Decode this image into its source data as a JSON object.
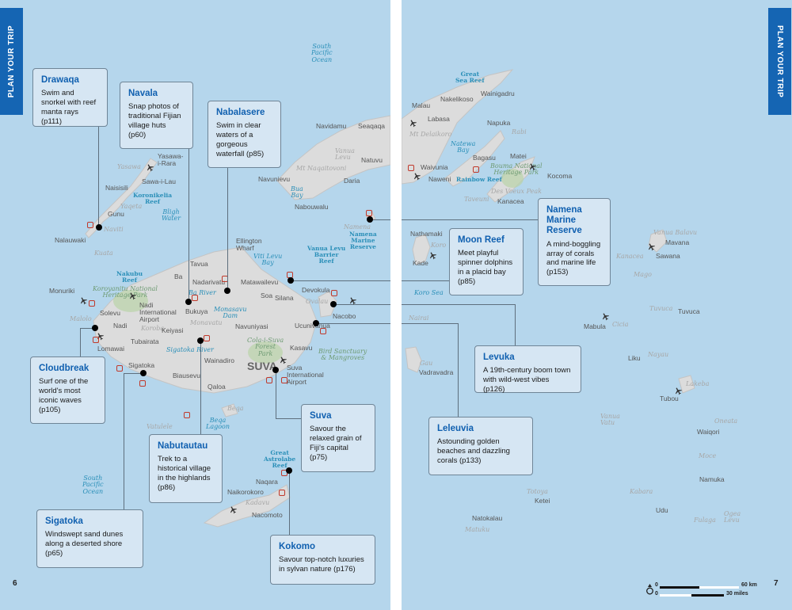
{
  "section_tab": "PLAN YOUR TRIP",
  "page_numbers": {
    "left": "6",
    "right": "7"
  },
  "colors": {
    "sea": "#b5d6ec",
    "land": "#dcdcdc",
    "accent": "#1565b3",
    "callout_bg": "#d6e6f3",
    "poi": "#c0392b"
  },
  "left_page": {
    "places": [
      {
        "text": "South\nPacific\nOcean",
        "type": "water"
      },
      {
        "text": "Yasawa-\ni-Rara",
        "type": "town"
      },
      {
        "text": "Yasawa",
        "type": "island"
      },
      {
        "text": "Sawa-i-Lau",
        "type": "town"
      },
      {
        "text": "Naisisili",
        "type": "town"
      },
      {
        "text": "Koronikelia\nReef",
        "type": "reef"
      },
      {
        "text": "Yaqeta",
        "type": "island"
      },
      {
        "text": "Bligh\nWater",
        "type": "water"
      },
      {
        "text": "Gunu",
        "type": "town"
      },
      {
        "text": "Naviti",
        "type": "island"
      },
      {
        "text": "Nalauwaki",
        "type": "town"
      },
      {
        "text": "Kuata",
        "type": "island"
      },
      {
        "text": "Navidamu",
        "type": "town"
      },
      {
        "text": "Seaqaqa",
        "type": "town"
      },
      {
        "text": "Vanua\nLevu",
        "type": "island"
      },
      {
        "text": "Natuvu",
        "type": "town"
      },
      {
        "text": "Mt Naqaitovoni",
        "type": "island"
      },
      {
        "text": "Navunievu",
        "type": "town"
      },
      {
        "text": "Daria",
        "type": "town"
      },
      {
        "text": "Bua\nBay",
        "type": "water"
      },
      {
        "text": "Nabouwalu",
        "type": "town"
      },
      {
        "text": "Namena",
        "type": "island"
      },
      {
        "text": "Namena\nMarine\nReserve",
        "type": "reef"
      },
      {
        "text": "Ellington\nWharf",
        "type": "town"
      },
      {
        "text": "Viti Levu\nBay",
        "type": "water"
      },
      {
        "text": "Vanua Levu\nBarrier\nReef",
        "type": "reef"
      },
      {
        "text": "Tavua",
        "type": "town"
      },
      {
        "text": "Nakubu\nReef",
        "type": "reef"
      },
      {
        "text": "Ba",
        "type": "town"
      },
      {
        "text": "Nadarivatu",
        "type": "town"
      },
      {
        "text": "Matawailevu",
        "type": "town"
      },
      {
        "text": "Koroyanitu National\nHeritage Park",
        "type": "park"
      },
      {
        "text": "Ba River",
        "type": "water"
      },
      {
        "text": "Soa",
        "type": "town"
      },
      {
        "text": "Silana",
        "type": "town"
      },
      {
        "text": "Devokula",
        "type": "town"
      },
      {
        "text": "Ovalau",
        "type": "island"
      },
      {
        "text": "Monuriki",
        "type": "town"
      },
      {
        "text": "Nadi\nInternational\nAirport",
        "type": "town"
      },
      {
        "text": "Bukuya",
        "type": "town"
      },
      {
        "text": "Monasavu\nDam",
        "type": "water"
      },
      {
        "text": "Solevu",
        "type": "town"
      },
      {
        "text": "Malolo",
        "type": "island"
      },
      {
        "text": "Nacobo",
        "type": "town"
      },
      {
        "text": "Ucunivanua",
        "type": "town"
      },
      {
        "text": "Navuniyasi",
        "type": "town"
      },
      {
        "text": "Nadi",
        "type": "town"
      },
      {
        "text": "Koroba",
        "type": "island"
      },
      {
        "text": "Keiyasi",
        "type": "town"
      },
      {
        "text": "Monavatu",
        "type": "island"
      },
      {
        "text": "Tubairata",
        "type": "town"
      },
      {
        "text": "Sigatoka River",
        "type": "water"
      },
      {
        "text": "Cola-i-Suva\nForest\nPark",
        "type": "park"
      },
      {
        "text": "Kasavu",
        "type": "town"
      },
      {
        "text": "Bird Sanctuary\n& Mangroves",
        "type": "park"
      },
      {
        "text": "Lomawai",
        "type": "town"
      },
      {
        "text": "Wainadiro",
        "type": "town"
      },
      {
        "text": "SUVA",
        "type": "big"
      },
      {
        "text": "Suva\nInternational\nAirport",
        "type": "town"
      },
      {
        "text": "Sigatoka",
        "type": "town"
      },
      {
        "text": "Biausevu",
        "type": "town"
      },
      {
        "text": "Qaloa",
        "type": "town"
      },
      {
        "text": "Beqa",
        "type": "island"
      },
      {
        "text": "Beqa\nLagoon",
        "type": "water"
      },
      {
        "text": "Vatulele",
        "type": "island"
      },
      {
        "text": "South\nPacific\nOcean",
        "type": "water"
      },
      {
        "text": "Great\nAstrolabe\nReef",
        "type": "reef"
      },
      {
        "text": "Naqara",
        "type": "town"
      },
      {
        "text": "Naikorokoro",
        "type": "town"
      },
      {
        "text": "Kadavu",
        "type": "island"
      },
      {
        "text": "Nacomoto",
        "type": "town"
      }
    ],
    "callouts": {
      "drawaqa": {
        "title": "Drawaqa",
        "text": "Swim and snorkel with reef manta rays (p111)"
      },
      "navala": {
        "title": "Navala",
        "text": "Snap photos of traditional Fijian village huts (p60)"
      },
      "nabalasere": {
        "title": "Nabalasere",
        "text": "Swim in clear waters of a gorgeous waterfall (p85)"
      },
      "cloudbreak": {
        "title": "Cloudbreak",
        "text": "Surf one of the world's most iconic waves (p105)"
      },
      "sigatoka": {
        "title": "Sigatoka",
        "text": "Windswept sand dunes along a deserted shore (p65)"
      },
      "nabutautau": {
        "title": "Nabutautau",
        "text": "Trek to a historical village in the highlands (p86)"
      },
      "suva": {
        "title": "Suva",
        "text": "Savour the relaxed grain of Fiji's capital (p75)"
      },
      "kokomo": {
        "title": "Kokomo",
        "text": "Savour top-notch luxuries in sylvan nature (p176)"
      }
    }
  },
  "right_page": {
    "places": [
      {
        "text": "Great\nSea Reef",
        "type": "reef"
      },
      {
        "text": "Malau",
        "type": "town"
      },
      {
        "text": "Nakelikoso",
        "type": "town"
      },
      {
        "text": "Wainigadru",
        "type": "town"
      },
      {
        "text": "Labasa",
        "type": "town"
      },
      {
        "text": "Mt Delaikoro",
        "type": "island"
      },
      {
        "text": "Napuka",
        "type": "town"
      },
      {
        "text": "Rabi",
        "type": "island"
      },
      {
        "text": "Natewa\nBay",
        "type": "water"
      },
      {
        "text": "Bagasu",
        "type": "town"
      },
      {
        "text": "Matei",
        "type": "town"
      },
      {
        "text": "Waivunia",
        "type": "town"
      },
      {
        "text": "Bouma National\nHeritage Park",
        "type": "park"
      },
      {
        "text": "Naweni",
        "type": "town"
      },
      {
        "text": "Rainbow Reef",
        "type": "reef"
      },
      {
        "text": "Kocoma",
        "type": "town"
      },
      {
        "text": "Des Voeux Peak",
        "type": "island"
      },
      {
        "text": "Taveuni",
        "type": "island"
      },
      {
        "text": "Kanacea",
        "type": "town"
      },
      {
        "text": "Nathamaki",
        "type": "town"
      },
      {
        "text": "Koro",
        "type": "island"
      },
      {
        "text": "Kade",
        "type": "town"
      },
      {
        "text": "Vanua Balavu",
        "type": "island"
      },
      {
        "text": "Mavana",
        "type": "town"
      },
      {
        "text": "Sawana",
        "type": "town"
      },
      {
        "text": "Kanacea",
        "type": "island"
      },
      {
        "text": "Mago",
        "type": "island"
      },
      {
        "text": "Koro Sea",
        "type": "water"
      },
      {
        "text": "Nairai",
        "type": "island"
      },
      {
        "text": "Tuvuca",
        "type": "island"
      },
      {
        "text": "Tuvuca",
        "type": "town"
      },
      {
        "text": "Mabula",
        "type": "town"
      },
      {
        "text": "Cicia",
        "type": "island"
      },
      {
        "text": "Gau",
        "type": "island"
      },
      {
        "text": "Vadravadra",
        "type": "town"
      },
      {
        "text": "Liku",
        "type": "town"
      },
      {
        "text": "Nayau",
        "type": "island"
      },
      {
        "text": "Lakeba",
        "type": "island"
      },
      {
        "text": "Tubou",
        "type": "town"
      },
      {
        "text": "Vanua\nVatu",
        "type": "island"
      },
      {
        "text": "Oneata",
        "type": "island"
      },
      {
        "text": "Waiqori",
        "type": "town"
      },
      {
        "text": "Moce",
        "type": "island"
      },
      {
        "text": "Namuka",
        "type": "town"
      },
      {
        "text": "Totoya",
        "type": "island"
      },
      {
        "text": "Ketei",
        "type": "town"
      },
      {
        "text": "Kabara",
        "type": "island"
      },
      {
        "text": "Udu",
        "type": "town"
      },
      {
        "text": "Natokalau",
        "type": "town"
      },
      {
        "text": "Matuku",
        "type": "island"
      },
      {
        "text": "Fulaga",
        "type": "island"
      },
      {
        "text": "Ogea\nLevu",
        "type": "island"
      }
    ],
    "callouts": {
      "moon_reef": {
        "title": "Moon Reef",
        "text": "Meet playful spinner dolphins in a placid bay (p85)"
      },
      "namena": {
        "title": "Namena Marine Reserve",
        "text": "A mind-boggling array of corals and marine life (p153)"
      },
      "levuka": {
        "title": "Levuka",
        "text": "A 19th-century boom town with wild-west vibes (p126)"
      },
      "leleuvia": {
        "title": "Leleuvia",
        "text": "Astounding golden beaches and dazzling corals (p133)"
      }
    },
    "scale": {
      "km_zero": "0",
      "km_label": "60 km",
      "mi_zero": "0",
      "mi_label": "30 miles"
    }
  }
}
